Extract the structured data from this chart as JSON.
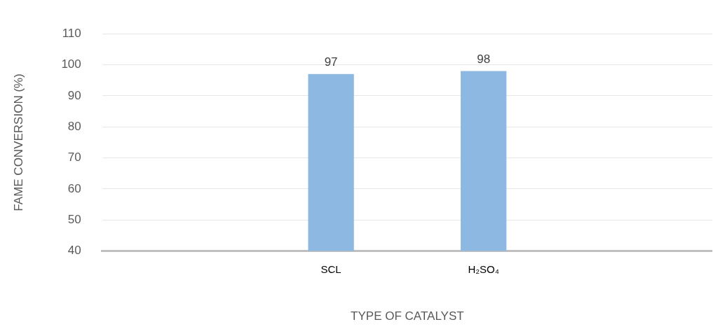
{
  "chart_data": {
    "type": "bar",
    "xlabel": "TYPE OF CATALYST",
    "ylabel": "FAME CONVERSION (%)",
    "categories": [
      null,
      "SCL",
      "H₂SO₄",
      null
    ],
    "values": [
      null,
      97,
      98,
      null
    ],
    "color": "#8db8e2",
    "ylim": [
      40,
      110
    ],
    "yticks": [
      40,
      50,
      60,
      70,
      80,
      90,
      100,
      110
    ],
    "grid": "y",
    "data_labels": true,
    "legend": false
  }
}
